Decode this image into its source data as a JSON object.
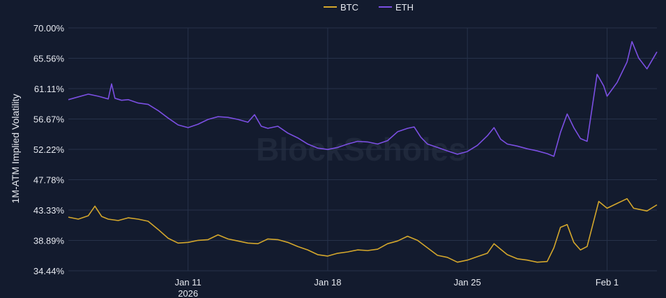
{
  "chart_data": {
    "type": "line",
    "title": "",
    "xlabel": "",
    "ylabel": "1M-ATM Implied Volatility",
    "y_ticks": [
      "70.00%",
      "65.56%",
      "61.11%",
      "56.67%",
      "52.22%",
      "47.78%",
      "43.33%",
      "38.89%",
      "34.44%"
    ],
    "ylim": [
      34.44,
      70.0
    ],
    "x_ticks": [
      {
        "label": "Jan 11",
        "sublabel": "2026",
        "x": "2026-01-11"
      },
      {
        "label": "Jan 18",
        "sublabel": "",
        "x": "2026-01-18"
      },
      {
        "label": "Jan 25",
        "sublabel": "",
        "x": "2026-01-25"
      },
      {
        "label": "Feb 1",
        "sublabel": "",
        "x": "2026-02-01"
      }
    ],
    "xlim": [
      "2026-01-05",
      "2026-02-03T12:00"
    ],
    "legend_position": "top-center",
    "grid": true,
    "watermark": "BlockScholes",
    "series": [
      {
        "name": "BTC",
        "color": "#d4a72c",
        "points": [
          [
            "2026-01-05",
            42.3
          ],
          [
            "2026-01-05T12:00",
            42.0
          ],
          [
            "2026-01-06",
            42.5
          ],
          [
            "2026-01-06T08:00",
            43.9
          ],
          [
            "2026-01-06T16:00",
            42.4
          ],
          [
            "2026-01-07",
            42.0
          ],
          [
            "2026-01-07T12:00",
            41.8
          ],
          [
            "2026-01-08",
            42.2
          ],
          [
            "2026-01-08T12:00",
            42.0
          ],
          [
            "2026-01-09",
            41.7
          ],
          [
            "2026-01-09T12:00",
            40.5
          ],
          [
            "2026-01-10",
            39.2
          ],
          [
            "2026-01-10T12:00",
            38.5
          ],
          [
            "2026-01-11",
            38.6
          ],
          [
            "2026-01-11T12:00",
            38.9
          ],
          [
            "2026-01-12",
            39.0
          ],
          [
            "2026-01-12T12:00",
            39.7
          ],
          [
            "2026-01-13",
            39.1
          ],
          [
            "2026-01-13T12:00",
            38.8
          ],
          [
            "2026-01-14",
            38.5
          ],
          [
            "2026-01-14T12:00",
            38.4
          ],
          [
            "2026-01-15",
            39.1
          ],
          [
            "2026-01-15T12:00",
            39.0
          ],
          [
            "2026-01-16",
            38.6
          ],
          [
            "2026-01-16T12:00",
            38.0
          ],
          [
            "2026-01-17",
            37.5
          ],
          [
            "2026-01-17T12:00",
            36.8
          ],
          [
            "2026-01-18",
            36.6
          ],
          [
            "2026-01-18T12:00",
            37.0
          ],
          [
            "2026-01-19",
            37.2
          ],
          [
            "2026-01-19T12:00",
            37.5
          ],
          [
            "2026-01-20",
            37.4
          ],
          [
            "2026-01-20T12:00",
            37.6
          ],
          [
            "2026-01-21",
            38.4
          ],
          [
            "2026-01-21T12:00",
            38.8
          ],
          [
            "2026-01-22",
            39.5
          ],
          [
            "2026-01-22T12:00",
            38.9
          ],
          [
            "2026-01-23",
            37.8
          ],
          [
            "2026-01-23T12:00",
            36.7
          ],
          [
            "2026-01-24",
            36.4
          ],
          [
            "2026-01-24T12:00",
            35.7
          ],
          [
            "2026-01-25",
            36.0
          ],
          [
            "2026-01-25T12:00",
            36.5
          ],
          [
            "2026-01-26",
            37.0
          ],
          [
            "2026-01-26T08:00",
            38.4
          ],
          [
            "2026-01-26T16:00",
            37.6
          ],
          [
            "2026-01-27",
            36.8
          ],
          [
            "2026-01-27T12:00",
            36.2
          ],
          [
            "2026-01-28",
            36.0
          ],
          [
            "2026-01-28T12:00",
            35.7
          ],
          [
            "2026-01-29",
            35.8
          ],
          [
            "2026-01-29T08:00",
            37.8
          ],
          [
            "2026-01-29T16:00",
            40.8
          ],
          [
            "2026-01-30",
            41.2
          ],
          [
            "2026-01-30T08:00",
            38.6
          ],
          [
            "2026-01-30T16:00",
            37.5
          ],
          [
            "2026-01-31",
            38.0
          ],
          [
            "2026-01-31T06:00",
            40.8
          ],
          [
            "2026-01-31T14:00",
            44.6
          ],
          [
            "2026-02-01",
            43.6
          ],
          [
            "2026-02-01T12:00",
            44.3
          ],
          [
            "2026-02-02",
            45.0
          ],
          [
            "2026-02-02T08:00",
            43.6
          ],
          [
            "2026-02-02T16:00",
            43.4
          ],
          [
            "2026-02-03",
            43.2
          ],
          [
            "2026-02-03T12:00",
            44.1
          ]
        ]
      },
      {
        "name": "ETH",
        "color": "#7b4fe3",
        "points": [
          [
            "2026-01-05",
            59.5
          ],
          [
            "2026-01-05T12:00",
            59.9
          ],
          [
            "2026-01-06",
            60.3
          ],
          [
            "2026-01-06T12:00",
            60.0
          ],
          [
            "2026-01-07",
            59.6
          ],
          [
            "2026-01-07T04:00",
            61.8
          ],
          [
            "2026-01-07T08:00",
            59.7
          ],
          [
            "2026-01-07T16:00",
            59.4
          ],
          [
            "2026-01-08",
            59.5
          ],
          [
            "2026-01-08T12:00",
            59.0
          ],
          [
            "2026-01-09",
            58.8
          ],
          [
            "2026-01-09T12:00",
            57.9
          ],
          [
            "2026-01-10",
            56.8
          ],
          [
            "2026-01-10T12:00",
            55.8
          ],
          [
            "2026-01-11",
            55.4
          ],
          [
            "2026-01-11T12:00",
            55.9
          ],
          [
            "2026-01-12",
            56.6
          ],
          [
            "2026-01-12T12:00",
            57.0
          ],
          [
            "2026-01-13",
            56.9
          ],
          [
            "2026-01-13T12:00",
            56.6
          ],
          [
            "2026-01-14",
            56.2
          ],
          [
            "2026-01-14T08:00",
            57.3
          ],
          [
            "2026-01-14T16:00",
            55.6
          ],
          [
            "2026-01-15",
            55.3
          ],
          [
            "2026-01-15T12:00",
            55.6
          ],
          [
            "2026-01-16",
            54.6
          ],
          [
            "2026-01-16T12:00",
            53.9
          ],
          [
            "2026-01-17",
            53.0
          ],
          [
            "2026-01-17T12:00",
            52.4
          ],
          [
            "2026-01-18",
            52.2
          ],
          [
            "2026-01-18T12:00",
            52.5
          ],
          [
            "2026-01-19",
            53.0
          ],
          [
            "2026-01-19T12:00",
            53.4
          ],
          [
            "2026-01-20",
            53.3
          ],
          [
            "2026-01-20T12:00",
            53.0
          ],
          [
            "2026-01-21",
            53.5
          ],
          [
            "2026-01-21T12:00",
            54.8
          ],
          [
            "2026-01-22",
            55.3
          ],
          [
            "2026-01-22T08:00",
            55.5
          ],
          [
            "2026-01-22T16:00",
            54.0
          ],
          [
            "2026-01-23",
            53.0
          ],
          [
            "2026-01-23T12:00",
            52.5
          ],
          [
            "2026-01-24",
            52.0
          ],
          [
            "2026-01-24T12:00",
            51.5
          ],
          [
            "2026-01-25",
            51.9
          ],
          [
            "2026-01-25T12:00",
            52.8
          ],
          [
            "2026-01-26",
            54.2
          ],
          [
            "2026-01-26T08:00",
            55.4
          ],
          [
            "2026-01-26T16:00",
            53.7
          ],
          [
            "2026-01-27",
            53.0
          ],
          [
            "2026-01-27T12:00",
            52.7
          ],
          [
            "2026-01-28",
            52.3
          ],
          [
            "2026-01-28T12:00",
            52.0
          ],
          [
            "2026-01-29",
            51.6
          ],
          [
            "2026-01-29T08:00",
            51.2
          ],
          [
            "2026-01-29T16:00",
            54.7
          ],
          [
            "2026-01-30",
            57.4
          ],
          [
            "2026-01-30T08:00",
            55.4
          ],
          [
            "2026-01-30T16:00",
            53.8
          ],
          [
            "2026-01-31",
            53.4
          ],
          [
            "2026-01-31T04:00",
            56.6
          ],
          [
            "2026-01-31T12:00",
            63.2
          ],
          [
            "2026-01-31T20:00",
            61.5
          ],
          [
            "2026-02-01",
            60.0
          ],
          [
            "2026-02-01T12:00",
            62.0
          ],
          [
            "2026-02-02",
            65.0
          ],
          [
            "2026-02-02T06:00",
            68.0
          ],
          [
            "2026-02-02T14:00",
            65.6
          ],
          [
            "2026-02-03",
            64.0
          ],
          [
            "2026-02-03T12:00",
            66.5
          ]
        ]
      }
    ]
  }
}
